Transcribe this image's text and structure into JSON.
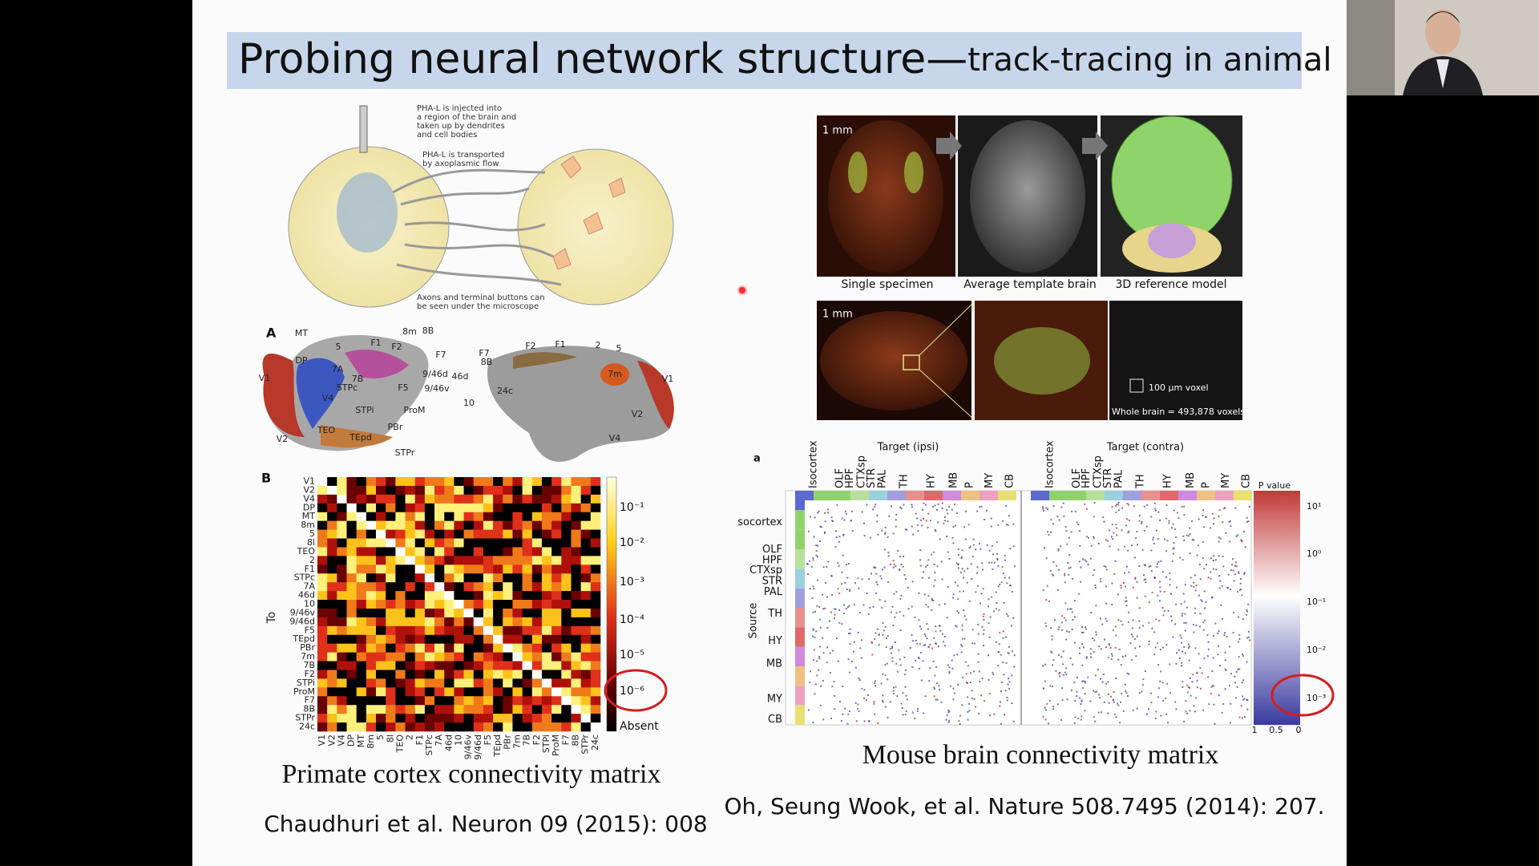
{
  "slide": {
    "title": "Probing neural network structure—",
    "title_suffix": "track-tracing in animal"
  },
  "tracing_diagram": {
    "annotations": [
      [
        "PHA-L is injected into",
        "a region of the brain and",
        "taken up by dendrites",
        "and cell bodies"
      ],
      [
        "PHA-L is transported",
        "by axoplasmic flow"
      ],
      [
        "Axons and terminal buttons can",
        "be seen under the microscope"
      ]
    ]
  },
  "primate": {
    "panel_a": "A",
    "panel_b": "B",
    "brain_labels": [
      "MT",
      "5",
      "F1",
      "F2",
      "8m",
      "8B",
      "F7",
      "DP",
      "7A",
      "7B",
      "V1",
      "V4",
      "STPc",
      "9/46d",
      "9/46v",
      "46d",
      "F5",
      "ProM",
      "STPi",
      "TEO",
      "TEpd",
      "PBr",
      "STPr",
      "V2",
      "10",
      "24c",
      "7m",
      "F7",
      "F2",
      "F1",
      "2",
      "5",
      "8B",
      "V1",
      "V2",
      "V4"
    ],
    "axis_label": "To",
    "areas": [
      "V1",
      "V2",
      "V4",
      "DP",
      "MT",
      "8m",
      "5",
      "8l",
      "TEO",
      "2",
      "F1",
      "STPc",
      "7A",
      "46d",
      "10",
      "9/46v",
      "9/46d",
      "F5",
      "TEpd",
      "PBr",
      "7m",
      "7B",
      "F2",
      "STPi",
      "ProM",
      "F7",
      "8B",
      "STPr",
      "24c"
    ],
    "colorbar": [
      "10⁻¹",
      "10⁻²",
      "10⁻³",
      "10⁻⁴",
      "10⁻⁵",
      "10⁻⁶",
      "Absent"
    ],
    "caption": "Primate cortex connectivity matrix",
    "citation": "Chaudhuri et al. Neuron 09 (2015): 008"
  },
  "mouse": {
    "scale_bars": [
      "1 mm",
      "1 mm"
    ],
    "row1_captions": [
      "Single specimen",
      "Average template brain",
      "3D reference model"
    ],
    "voxel": "100 µm voxel",
    "whole_brain": "Whole brain = 493,878 voxels",
    "panel": "a",
    "target_ipsi": "Target (ipsi)",
    "target_contra": "Target (contra)",
    "targets": [
      "Isocortex",
      "OLF",
      "HPF",
      "CTXsp",
      "STR",
      "PAL",
      "TH",
      "HY",
      "MB",
      "P",
      "MY",
      "CB"
    ],
    "source_label": "Source",
    "sources": [
      "socortex",
      "OLF",
      "HPF",
      "CTXsp",
      "STR",
      "PAL",
      "TH",
      "HY",
      "MB",
      "MY",
      "CB"
    ],
    "p_value": "P value",
    "colorbar": [
      "10¹",
      "10⁰",
      "10⁻¹",
      "10⁻²",
      "10⁻³"
    ],
    "colorbar_bottom": [
      "1",
      "0.5",
      "0"
    ],
    "caption": "Mouse brain connectivity matrix",
    "citation": "Oh, Seung Wook, et al. Nature 508.7495 (2014): 207."
  }
}
